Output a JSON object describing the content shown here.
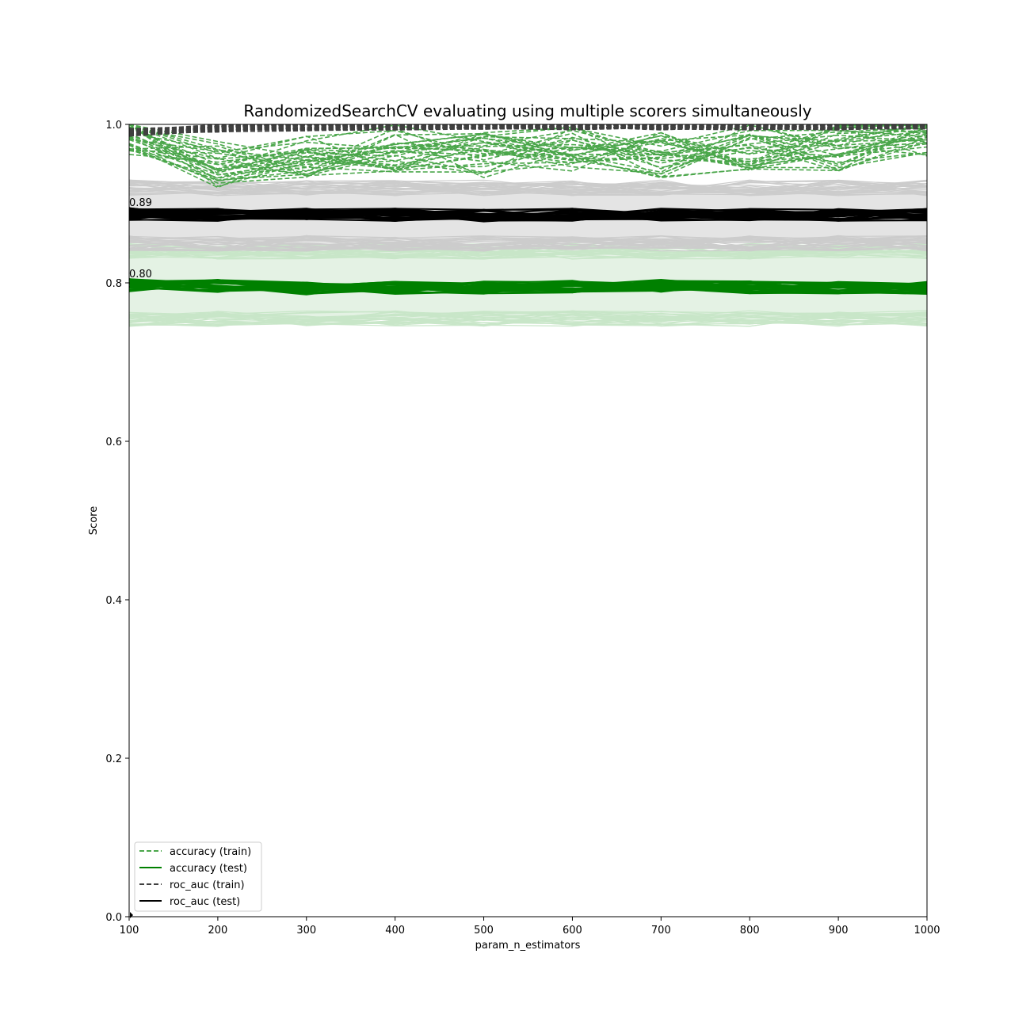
{
  "chart_data": {
    "type": "line",
    "title": "RandomizedSearchCV evaluating using multiple scorers simultaneously",
    "xlabel": "param_n_estimators",
    "ylabel": "Score",
    "xlim": [
      100,
      1000
    ],
    "ylim": [
      0.0,
      1.0
    ],
    "x_ticks": [
      "100",
      "200",
      "300",
      "400",
      "500",
      "600",
      "700",
      "800",
      "900",
      "1000"
    ],
    "y_ticks": [
      "0.0",
      "0.2",
      "0.4",
      "0.6",
      "0.8",
      "1.0"
    ],
    "grid": false,
    "legend_placement": "lower-left",
    "x": [
      100,
      200,
      300,
      400,
      500,
      600,
      700,
      800,
      900,
      1000
    ],
    "series": [
      {
        "name": "accuracy (train)",
        "color": "#4aa64a",
        "dash": "dashed",
        "values": [
          0.99,
          0.95,
          0.96,
          0.97,
          0.96,
          0.97,
          0.96,
          0.97,
          0.97,
          0.99
        ],
        "spread": 0.06
      },
      {
        "name": "accuracy (test)",
        "color": "#008000",
        "dash": "solid",
        "values": [
          0.797,
          0.796,
          0.793,
          0.794,
          0.794,
          0.795,
          0.796,
          0.794,
          0.794,
          0.794
        ],
        "band": [
          0.755,
          0.84
        ]
      },
      {
        "name": "roc_auc (train)",
        "color": "#404040",
        "dash": "dashed",
        "values": [
          0.99,
          0.995,
          0.997,
          0.998,
          0.998,
          0.998,
          0.998,
          0.998,
          0.998,
          0.999
        ],
        "spread": 0.01
      },
      {
        "name": "roc_auc (test)",
        "color": "#000000",
        "dash": "solid",
        "values": [
          0.887,
          0.886,
          0.886,
          0.886,
          0.885,
          0.886,
          0.886,
          0.886,
          0.886,
          0.886
        ],
        "band": [
          0.85,
          0.92
        ]
      }
    ],
    "annotations": [
      {
        "text": "0.89",
        "x": 100,
        "y": 0.89
      },
      {
        "text": "0.80",
        "x": 100,
        "y": 0.8
      }
    ]
  }
}
